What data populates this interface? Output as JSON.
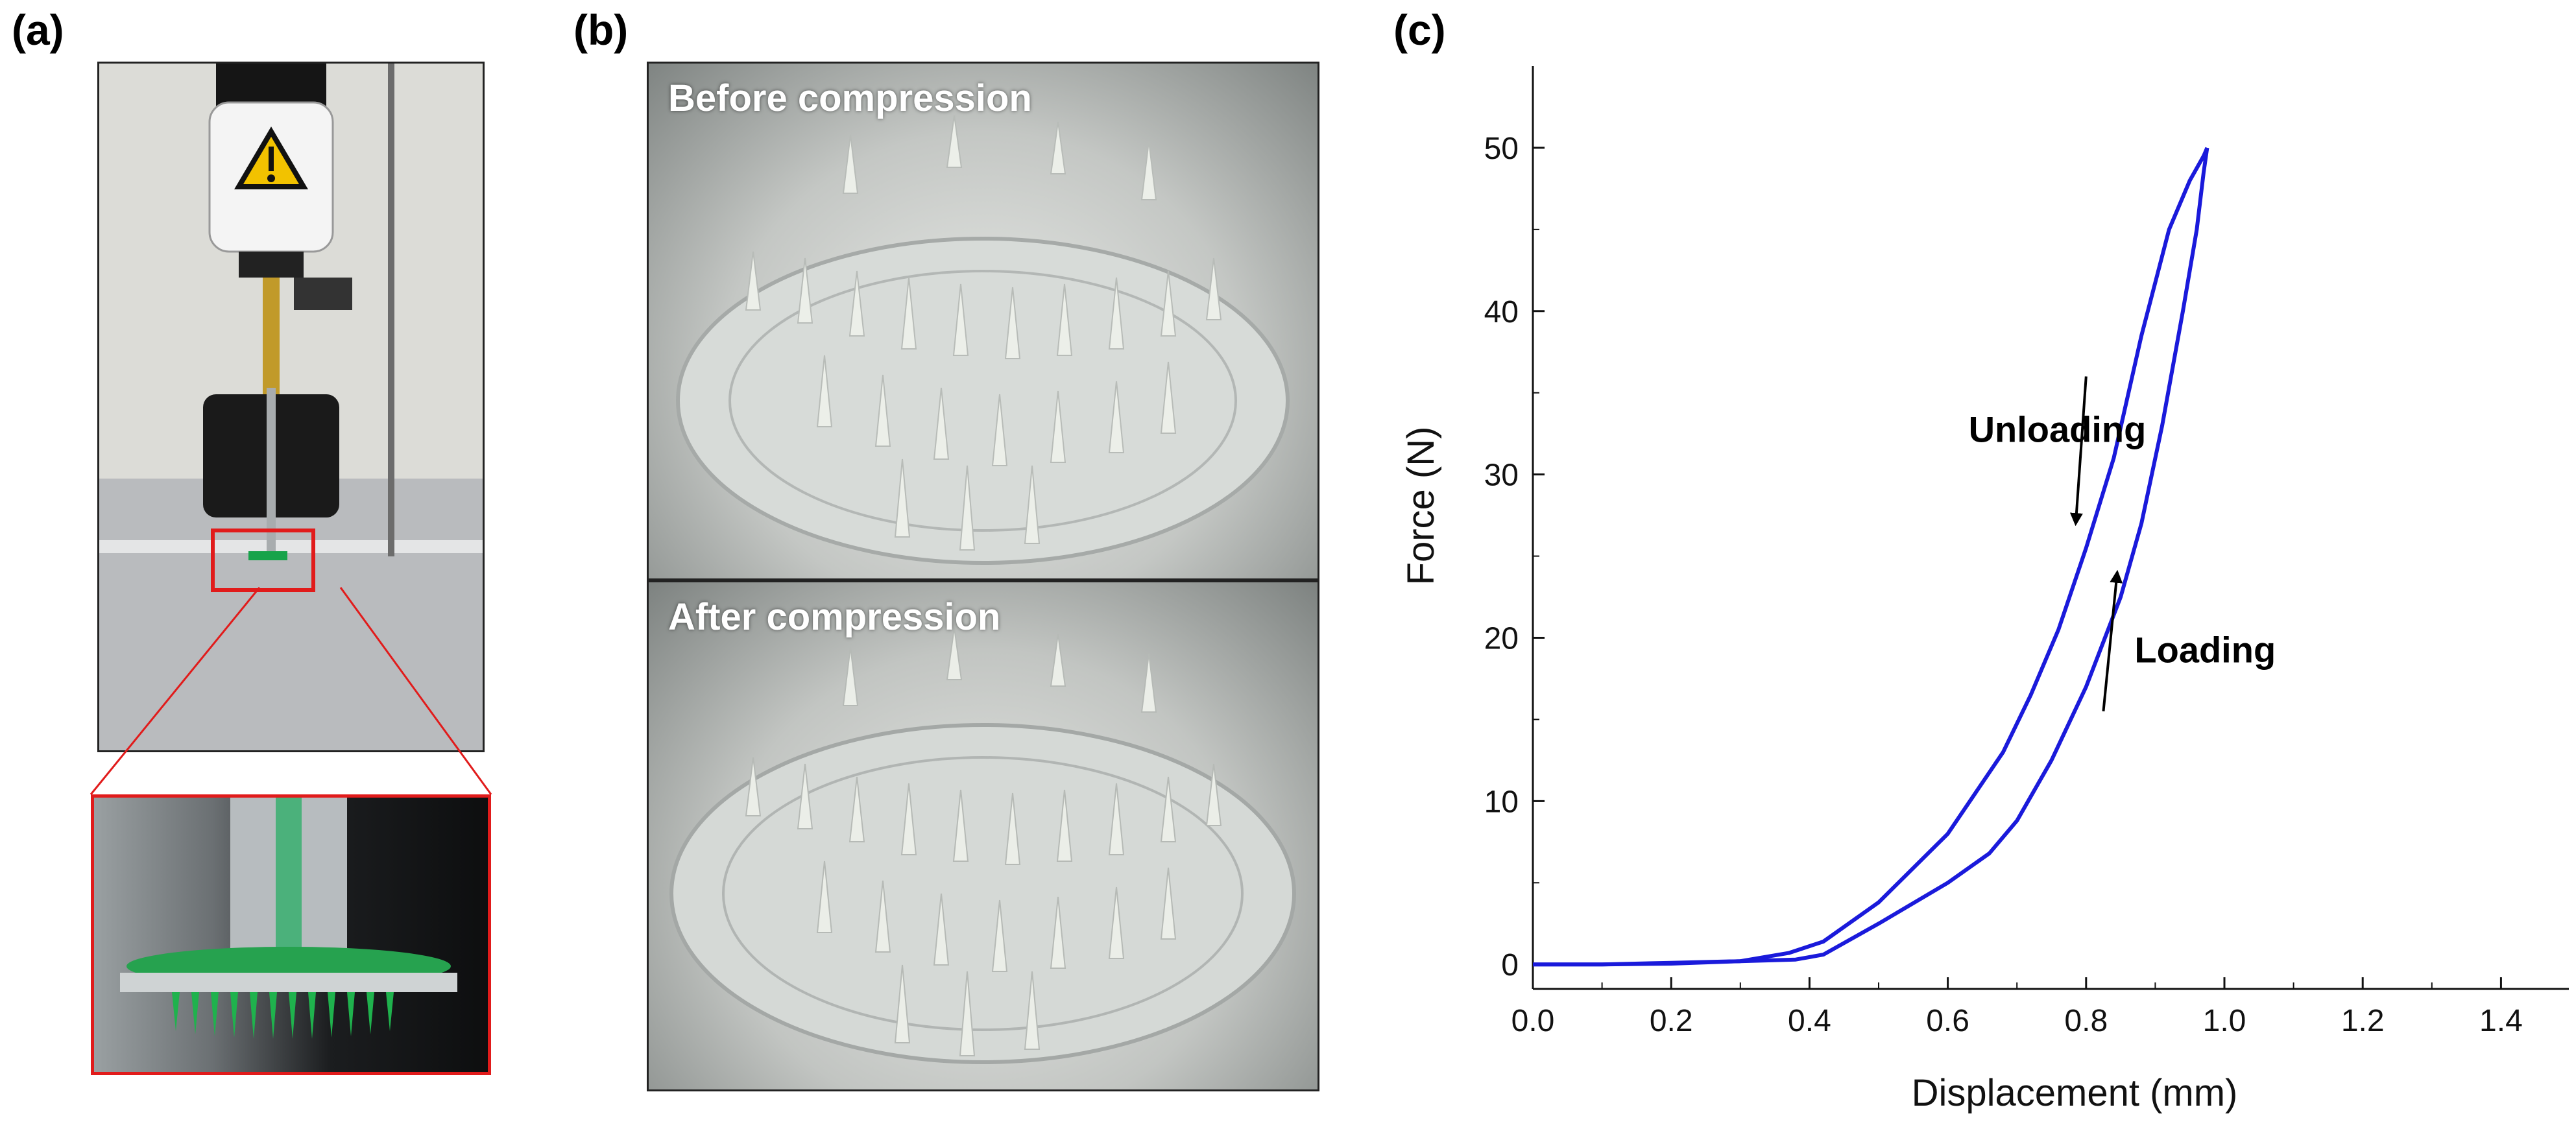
{
  "panels": {
    "a_label": "(a)",
    "b_label": "(b)",
    "c_label": "(c)"
  },
  "photos": {
    "before_caption": "Before compression",
    "after_caption": "After compression"
  },
  "colors": {
    "curve": "#1a1adb",
    "zoom_box": "#e11b1b",
    "warning_yellow": "#f2c200"
  },
  "chart_data": {
    "type": "line",
    "title": "",
    "xlabel": "Displacement (mm)",
    "ylabel": "Force (N)",
    "xlim": [
      0.0,
      1.5
    ],
    "ylim": [
      -1.5,
      55
    ],
    "xticks": [
      0.0,
      0.2,
      0.4,
      0.6,
      0.8,
      1.0,
      1.2,
      1.4
    ],
    "xtick_labels": [
      "0.0",
      "0.2",
      "0.4",
      "0.6",
      "0.8",
      "1.0",
      "1.2",
      "1.4"
    ],
    "yticks": [
      0,
      10,
      20,
      30,
      40,
      50
    ],
    "ytick_labels": [
      "0",
      "10",
      "20",
      "30",
      "40",
      "50"
    ],
    "grid": false,
    "series": [
      {
        "name": "Loading",
        "x": [
          0.0,
          0.1,
          0.2,
          0.3,
          0.38,
          0.42,
          0.5,
          0.6,
          0.66,
          0.7,
          0.75,
          0.8,
          0.85,
          0.88,
          0.91,
          0.94,
          0.96,
          0.97,
          0.975
        ],
        "y": [
          0.0,
          0.0,
          0.1,
          0.2,
          0.3,
          0.6,
          2.5,
          5.0,
          6.8,
          8.8,
          12.5,
          17.0,
          22.5,
          27.0,
          33.0,
          40.0,
          45.0,
          48.5,
          50.0
        ]
      },
      {
        "name": "Unloading",
        "x": [
          0.975,
          0.97,
          0.95,
          0.92,
          0.88,
          0.84,
          0.8,
          0.76,
          0.72,
          0.68,
          0.6,
          0.5,
          0.42,
          0.37,
          0.3,
          0.2,
          0.1,
          0.0
        ],
        "y": [
          50.0,
          49.5,
          48.0,
          45.0,
          38.5,
          31.0,
          25.5,
          20.5,
          16.5,
          13.0,
          8.0,
          3.8,
          1.4,
          0.7,
          0.2,
          0.05,
          0.0,
          0.0
        ]
      }
    ],
    "annotations": [
      {
        "text": "Unloading",
        "x": 0.63,
        "y": 32.0,
        "arrow": {
          "from": [
            0.8,
            36.0
          ],
          "to": [
            0.785,
            27.0
          ]
        }
      },
      {
        "text": "Loading",
        "x": 0.87,
        "y": 18.5,
        "arrow": {
          "from": [
            0.825,
            15.5
          ],
          "to": [
            0.845,
            24.0
          ]
        }
      }
    ]
  }
}
